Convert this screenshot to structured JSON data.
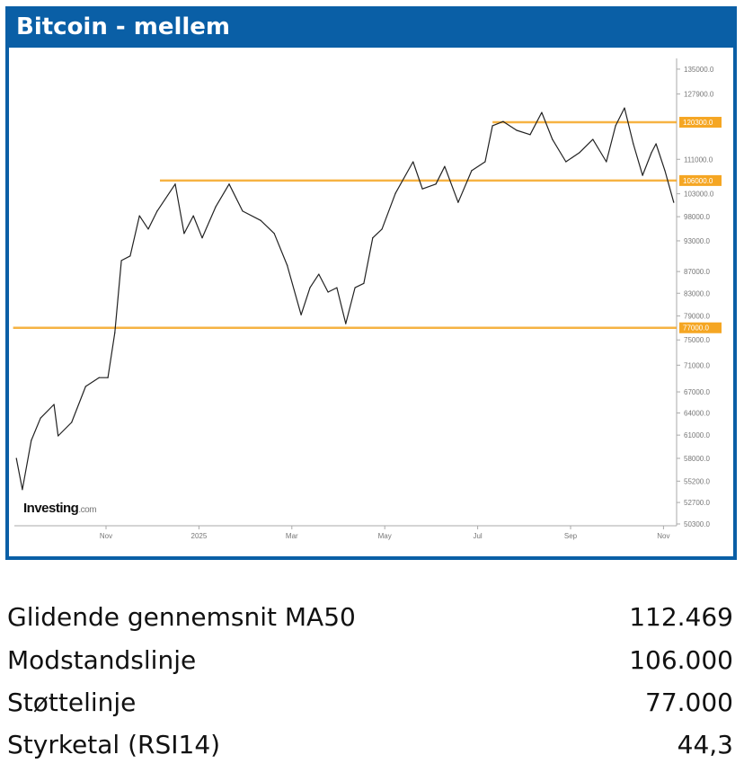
{
  "title": "Bitcoin - mellem",
  "watermark": {
    "brand": "Investing",
    "suffix": ".com"
  },
  "chart_data": {
    "type": "line",
    "title": "Bitcoin - mellem",
    "x_unit": "months since Sep 2024",
    "xlim": [
      0,
      14.4
    ],
    "ylim": [
      50300,
      135000
    ],
    "y_scale": "log",
    "x_ticks": [
      {
        "m": 2,
        "label": "Nov"
      },
      {
        "m": 4,
        "label": "2025"
      },
      {
        "m": 6,
        "label": "Mar"
      },
      {
        "m": 8,
        "label": "May"
      },
      {
        "m": 10,
        "label": "Jul"
      },
      {
        "m": 12,
        "label": "Sep"
      },
      {
        "m": 14,
        "label": "Nov"
      }
    ],
    "y_ticks": [
      135000,
      127900,
      111000,
      103000,
      98000,
      93000,
      87000,
      83000,
      79000,
      75000,
      71000,
      67000,
      64000,
      61000,
      58000,
      55200,
      52700,
      50300
    ],
    "y_tick_labels": [
      "135000.0",
      "127900.0",
      "111000.0",
      "103000.0",
      "98000.0",
      "93000.0",
      "87000.0",
      "83000.0",
      "79000.0",
      "75000.0",
      "71000.0",
      "67000.0",
      "64000.0",
      "61000.0",
      "58000.0",
      "55200.0",
      "52700.0",
      "50300.0"
    ],
    "levels": [
      {
        "value": 120300,
        "label": "120300.0",
        "from_m": 10.32,
        "color": "#f5a623"
      },
      {
        "value": 106000,
        "label": "106000.0",
        "from_m": 3.16,
        "color": "#f5a623"
      },
      {
        "value": 77000,
        "label": "77000.0",
        "from_m": 0.0,
        "color": "#f5a623"
      }
    ],
    "series": [
      {
        "name": "Bitcoin",
        "x": [
          0.07,
          0.2,
          0.39,
          0.59,
          0.88,
          0.97,
          1.26,
          1.56,
          1.85,
          2.04,
          2.19,
          2.33,
          2.52,
          2.72,
          2.91,
          3.1,
          3.49,
          3.68,
          3.88,
          4.07,
          4.36,
          4.65,
          4.94,
          5.33,
          5.62,
          5.9,
          6.2,
          6.39,
          6.58,
          6.78,
          6.97,
          7.16,
          7.36,
          7.55,
          7.74,
          7.94,
          8.23,
          8.61,
          8.81,
          9.1,
          9.29,
          9.58,
          9.87,
          10.16,
          10.32,
          10.55,
          10.84,
          11.13,
          11.38,
          11.61,
          11.9,
          12.19,
          12.48,
          12.77,
          12.97,
          13.16,
          13.35,
          13.55,
          13.74,
          13.84,
          14.03,
          14.22
        ],
        "values": [
          58000,
          54200,
          60300,
          63300,
          65200,
          60900,
          62700,
          67800,
          69100,
          69100,
          76200,
          89100,
          90000,
          98200,
          95400,
          99200,
          105200,
          94500,
          98200,
          93600,
          100100,
          105200,
          99200,
          97200,
          94500,
          88200,
          79200,
          84000,
          86500,
          83200,
          84000,
          77700,
          84000,
          84800,
          93600,
          95400,
          103100,
          110400,
          104100,
          105200,
          109300,
          101100,
          108300,
          110400,
          119400,
          120500,
          118200,
          117100,
          122900,
          115900,
          110400,
          112600,
          115900,
          110400,
          119400,
          124100,
          114800,
          107200,
          112600,
          114800,
          108300,
          101100
        ]
      }
    ]
  },
  "stats": [
    {
      "label": "Glidende gennemsnit MA50",
      "value": "112.469"
    },
    {
      "label": "Modstandslinje",
      "value": "106.000"
    },
    {
      "label": "Støttelinje",
      "value": "77.000"
    },
    {
      "label": "Styrketal (RSI14)",
      "value": "44,3"
    }
  ]
}
